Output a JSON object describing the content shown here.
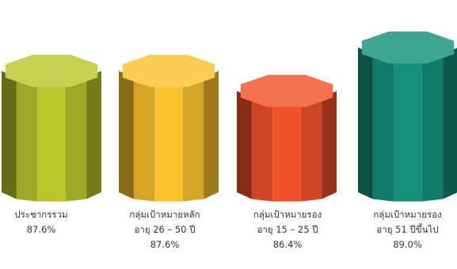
{
  "chart_data": {
    "type": "bar",
    "style": "3d-octagonal-prism",
    "categories": [
      "ประชากรรวม",
      "กลุ่มเป้าหมายหลัก อายุ 26 – 50 ปี",
      "กลุ่มเป้าหมายรอง อายุ 15 – 25 ปี",
      "กลุ่มเป้าหมายรอง อายุ 51 ปีขึ้นไป"
    ],
    "values": [
      87.6,
      87.6,
      86.4,
      89.0
    ],
    "unit": "%",
    "title": "",
    "xlabel": "",
    "ylabel": "",
    "grid": false,
    "colors": [
      "#b9c72c",
      "#fbc22e",
      "#f2522a",
      "#15907a"
    ],
    "labels": [
      {
        "line1": "ประชากรรวม",
        "line2": "",
        "value": "87.6%"
      },
      {
        "line1": "กลุ่มเป้าหมายหลัก",
        "line2": "อายุ 26 – 50 ปี",
        "value": "87.6%"
      },
      {
        "line1": "กลุ่มเป้าหมายรอง",
        "line2": "อายุ 15 – 25 ปี",
        "value": "86.4%"
      },
      {
        "line1": "กลุ่มเป้าหมายรอง",
        "line2": "อายุ 51 ปีขึ้นไป",
        "value": "89.0%"
      }
    ]
  }
}
